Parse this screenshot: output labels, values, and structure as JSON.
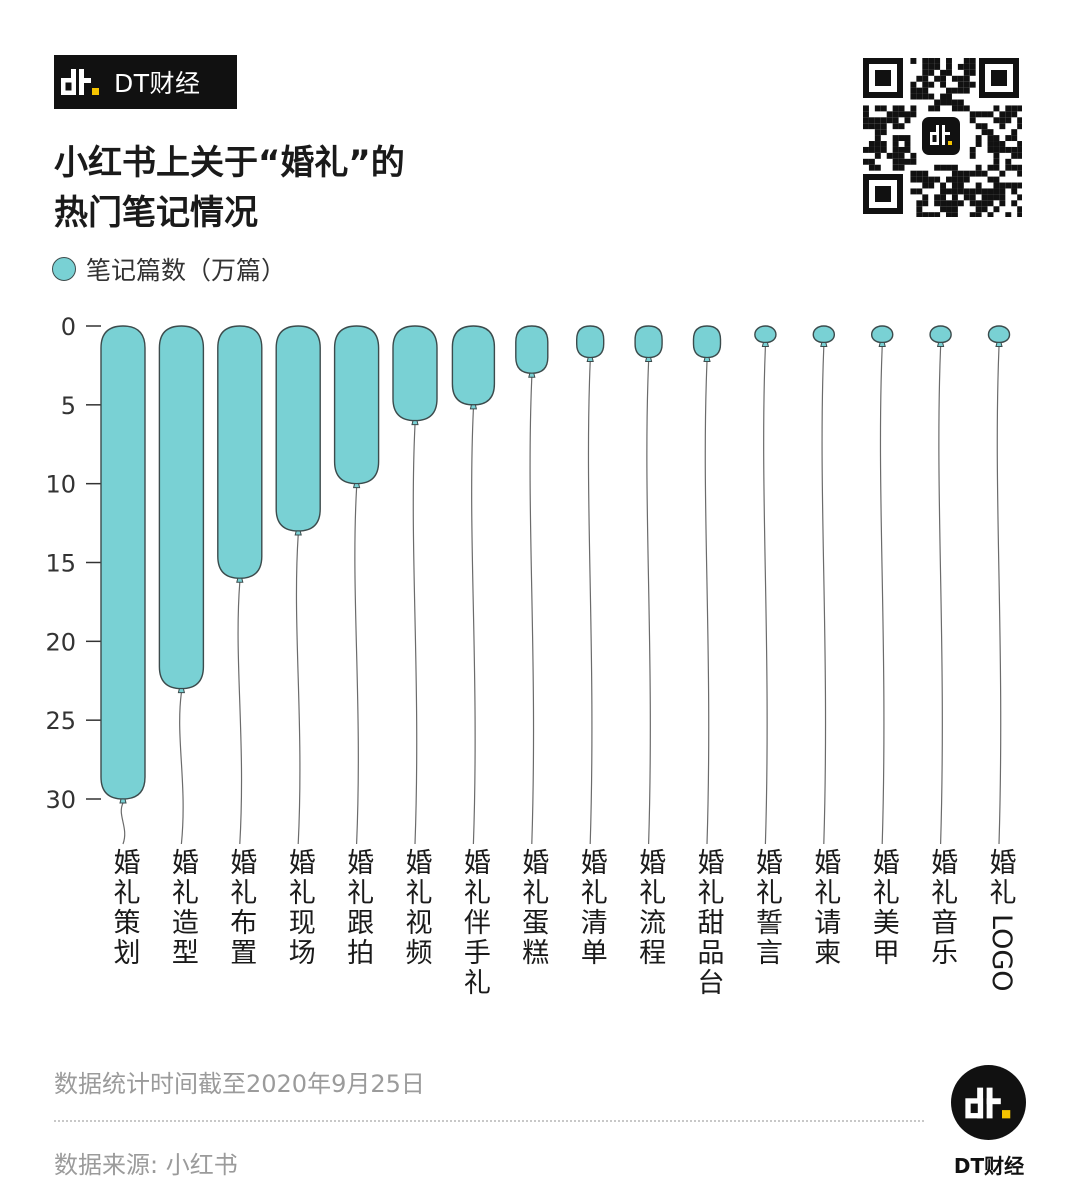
{
  "brand": {
    "name": "DT财经",
    "logo_icon": "dt-logo-icon"
  },
  "title": {
    "line1": "小红书上关于“婚礼”的",
    "line2": "热门笔记情况"
  },
  "chart_data": {
    "type": "bar",
    "orientation": "vertical-downward",
    "legend": {
      "label": "笔记篇数（万篇）",
      "color": "#79d1d4"
    },
    "categories": [
      "婚礼策划",
      "婚礼造型",
      "婚礼布置",
      "婚礼现场",
      "婚礼跟拍",
      "婚礼视频",
      "婚礼伴手礼",
      "婚礼蛋糕",
      "婚礼清单",
      "婚礼流程",
      "婚礼甜品台",
      "婚礼誓言",
      "婚礼请柬",
      "婚礼美甲",
      "婚礼音乐",
      "婚礼LOGO"
    ],
    "values": [
      30,
      23,
      16,
      13,
      10,
      6,
      5,
      3,
      2,
      2,
      2,
      1,
      1,
      1,
      1,
      1
    ],
    "y_ticks": [
      "0",
      "5",
      "10",
      "15",
      "20",
      "25",
      "30"
    ],
    "ylim": [
      0,
      30
    ],
    "y_axis_inverted": true,
    "grid": false,
    "legend_placement": "top-left",
    "colors": {
      "fill": "#79d1d4",
      "stroke": "#3c4b4c",
      "string": "#6b6b6b"
    }
  },
  "notes": {
    "date": "数据统计时间截至2020年9月25日",
    "source": "数据来源: 小红书"
  },
  "footer_logo": {
    "caption": "DT财经"
  }
}
